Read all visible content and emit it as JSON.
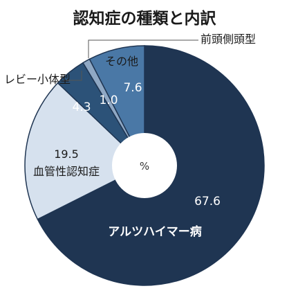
{
  "chart_data": {
    "type": "pie",
    "title": "認知症の種類と内訳",
    "center_label": "%",
    "slices": [
      {
        "name": "アルツハイマー病",
        "value": 67.6,
        "value_label": "67.6",
        "color": "#1f3552"
      },
      {
        "name": "血管性認知症",
        "value": 19.5,
        "value_label": "19.5",
        "color": "#d6e1ee"
      },
      {
        "name": "レビー小体型",
        "value": 4.3,
        "value_label": "4.3",
        "color": "#2c5278"
      },
      {
        "name": "前頭側頭型",
        "value": 1.0,
        "value_label": "1.0",
        "color": "#8fa8c4"
      },
      {
        "name": "その他",
        "value": 7.6,
        "value_label": "7.6",
        "color": "#4a78a6"
      }
    ]
  }
}
